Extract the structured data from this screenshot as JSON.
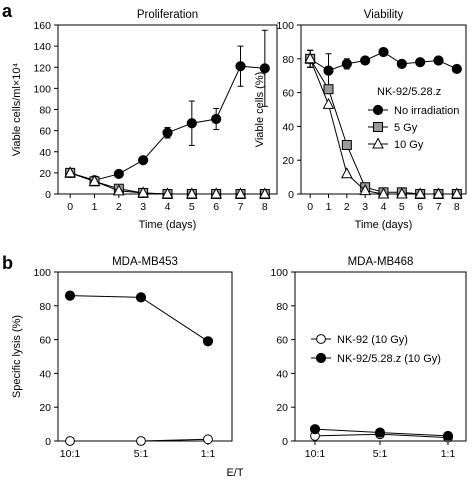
{
  "panels": [
    {
      "letter": "a"
    },
    {
      "letter": "b"
    }
  ],
  "shared_xlabel": "E/T",
  "chart_data": [
    {
      "type": "line",
      "title": "Proliferation",
      "xlabel": "Time (days)",
      "ylabel": "Viable cells/ml×10⁴",
      "xlim": [
        -0.5,
        8.5
      ],
      "ylim": [
        0,
        160
      ],
      "xticks": [
        0,
        1,
        2,
        3,
        4,
        5,
        6,
        7,
        8
      ],
      "yticks": [
        0,
        20,
        40,
        60,
        80,
        100,
        120,
        140,
        160
      ],
      "grid": false,
      "series": [
        {
          "key": "noirr",
          "marker": "circle-filled",
          "x": [
            0,
            1,
            2,
            3,
            4,
            5,
            6,
            7,
            8
          ],
          "values": [
            20,
            13,
            19,
            32,
            58,
            67,
            71,
            121,
            119
          ],
          "err": [
            0,
            0,
            0,
            0,
            5,
            21,
            10,
            19,
            36
          ]
        },
        {
          "key": "g5",
          "marker": "square-gray",
          "x": [
            0,
            1,
            2,
            3,
            4,
            5,
            6,
            7,
            8
          ],
          "values": [
            20,
            12,
            5,
            1,
            0,
            0,
            0,
            0,
            0
          ],
          "err": [
            0,
            0,
            0,
            0,
            0,
            0,
            0,
            0,
            0
          ]
        },
        {
          "key": "g10",
          "marker": "triangle-open",
          "x": [
            0,
            1,
            2,
            3,
            4,
            5,
            6,
            7,
            8
          ],
          "values": [
            20,
            12,
            3,
            1,
            0,
            0,
            0,
            0,
            0
          ],
          "err": [
            0,
            0,
            0,
            0,
            0,
            0,
            0,
            0,
            0
          ]
        }
      ]
    },
    {
      "type": "line",
      "title": "Viability",
      "xlabel": "Time (days)",
      "ylabel": "Viable cells (%)",
      "xlim": [
        -0.5,
        8.5
      ],
      "ylim": [
        0,
        100
      ],
      "xticks": [
        0,
        1,
        2,
        3,
        4,
        5,
        6,
        7,
        8
      ],
      "yticks": [
        0,
        20,
        40,
        60,
        80,
        100
      ],
      "grid": false,
      "legend": {
        "title": "NK-92/5.28.z",
        "placement": "right"
      },
      "series": [
        {
          "key": "noirr",
          "name": "No irradiation",
          "marker": "circle-filled",
          "x": [
            0,
            1,
            2,
            3,
            4,
            5,
            6,
            7,
            8
          ],
          "values": [
            80,
            73,
            77,
            79,
            84,
            77,
            78,
            79,
            74
          ],
          "err": [
            5,
            10,
            3,
            0,
            0,
            0,
            0,
            0,
            0
          ]
        },
        {
          "key": "g5",
          "name": "5 Gy",
          "marker": "square-gray",
          "x": [
            0,
            1,
            2,
            3,
            4,
            5,
            6,
            7,
            8
          ],
          "values": [
            80,
            62,
            29,
            4,
            1,
            1,
            0,
            0,
            0
          ],
          "err": [
            5,
            0,
            0,
            0,
            0,
            0,
            0,
            0,
            0
          ]
        },
        {
          "key": "g10",
          "name": "10 Gy",
          "marker": "triangle-open",
          "x": [
            0,
            1,
            2,
            3,
            4,
            5,
            6,
            7,
            8
          ],
          "values": [
            80,
            53,
            12,
            2,
            0,
            0,
            0,
            0,
            0
          ],
          "err": [
            5,
            0,
            0,
            0,
            0,
            0,
            0,
            0,
            0
          ]
        }
      ]
    },
    {
      "type": "line",
      "title": "MDA-MB453",
      "xlabel": "",
      "ylabel": "Specific lysis (%)",
      "categories": [
        "10:1",
        "5:1",
        "1:1"
      ],
      "ylim": [
        0,
        100
      ],
      "yticks": [
        0,
        20,
        40,
        60,
        80,
        100
      ],
      "grid": false,
      "series": [
        {
          "key": "nk92",
          "marker": "circle-open",
          "values": [
            0,
            0,
            1
          ]
        },
        {
          "key": "nk92z",
          "marker": "circle-filled",
          "values": [
            86,
            85,
            59
          ]
        }
      ]
    },
    {
      "type": "line",
      "title": "MDA-MB468",
      "xlabel": "",
      "ylabel": "",
      "categories": [
        "10:1",
        "5:1",
        "1:1"
      ],
      "ylim": [
        0,
        100
      ],
      "yticks": [
        0,
        20,
        40,
        60,
        80,
        100
      ],
      "grid": false,
      "legend": {
        "placement": "center"
      },
      "series": [
        {
          "key": "nk92",
          "name": "NK-92 (10 Gy)",
          "marker": "circle-open",
          "values": [
            3,
            4,
            2
          ]
        },
        {
          "key": "nk92z",
          "name": "NK-92/5.28.z (10 Gy)",
          "marker": "circle-filled",
          "values": [
            7,
            5,
            3
          ]
        }
      ]
    }
  ]
}
